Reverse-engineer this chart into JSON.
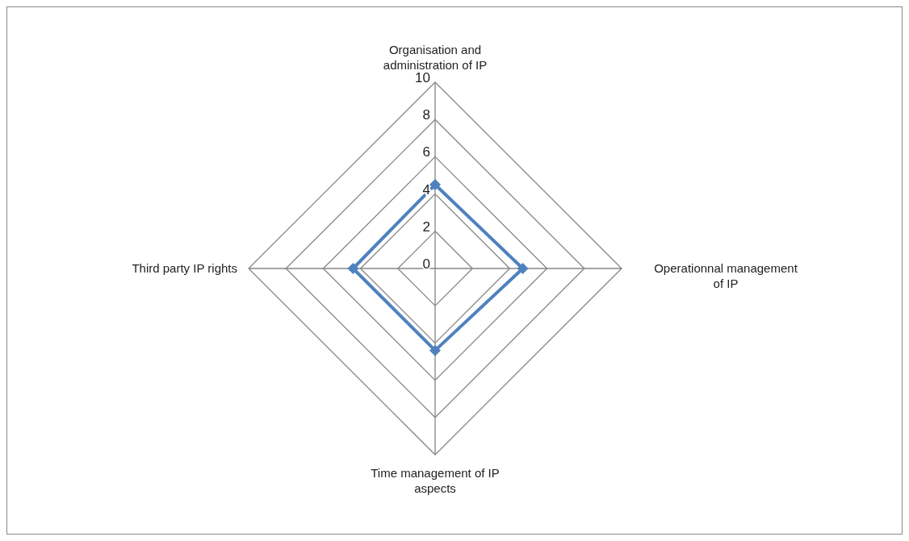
{
  "chart_data": {
    "type": "radar",
    "categories": [
      "Organisation and administration of IP",
      "Operationnal management of IP",
      "Time management of IP aspects",
      "Third party IP rights"
    ],
    "series": [
      {
        "color": "#4f81bd",
        "values": [
          4.5,
          4.7,
          4.4,
          4.4
        ]
      }
    ],
    "ylim": [
      0,
      10
    ],
    "yticks": [
      0,
      2,
      4,
      6,
      8,
      10
    ],
    "grid": true,
    "marker": "diamond",
    "legend": false
  }
}
